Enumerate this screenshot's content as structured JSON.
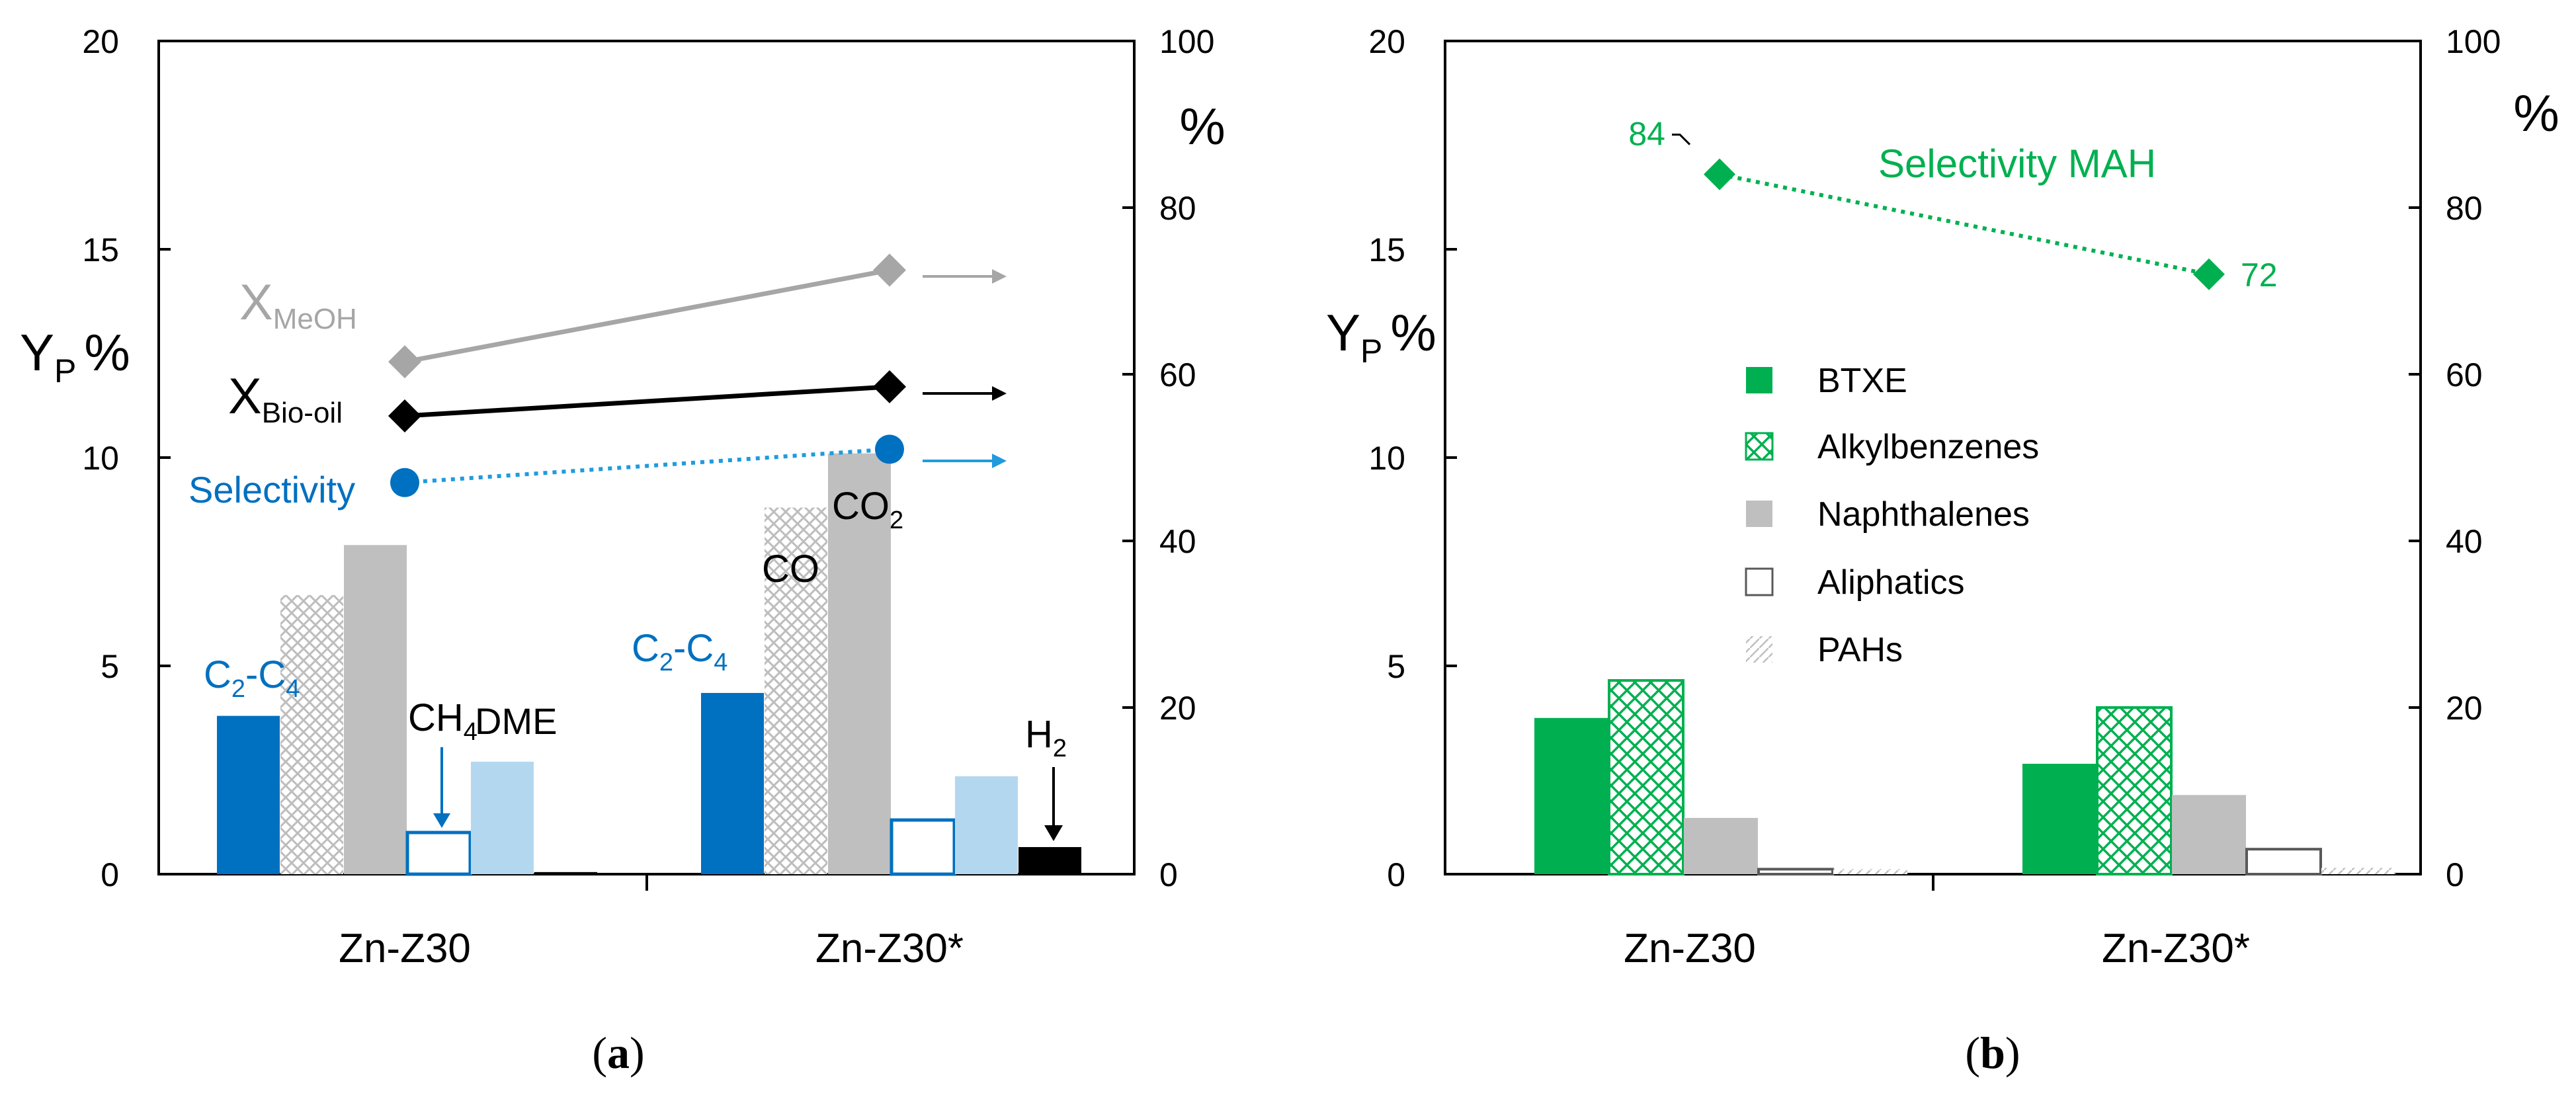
{
  "colors": {
    "blue_dark": "#0070C0",
    "blue_light": "#B4D7F0",
    "gray": "#BFBFBF",
    "gray_text": "#A6A6A6",
    "green": "#00B050",
    "black": "#000000"
  },
  "chart_data": [
    {
      "id": "a",
      "panel_label": "a",
      "type": "bar",
      "categories": [
        "Zn-Z30",
        "Zn-Z30*"
      ],
      "ylabel": "Y",
      "ylabel_sub": "P",
      "ylabel_unit": "%",
      "ylim": [
        0,
        20
      ],
      "yticks": [
        "0",
        "5",
        "10",
        "15",
        "20"
      ],
      "y2label": "%",
      "y2lim": [
        0,
        100
      ],
      "y2ticks": [
        "0",
        "20",
        "40",
        "60",
        "80",
        "100"
      ],
      "series": [
        {
          "name": "C2-C4",
          "label_main": "C",
          "label_sub1": "2",
          "label_mid": "-C",
          "label_sub2": "4",
          "values": [
            3.8,
            4.35
          ]
        },
        {
          "name": "CO",
          "label": "CO",
          "values": [
            6.7,
            8.8
          ]
        },
        {
          "name": "CO2",
          "label_main": "CO",
          "label_sub": "2",
          "values": [
            7.9,
            10.1
          ]
        },
        {
          "name": "CH4",
          "label_main": "CH",
          "label_sub": "4",
          "values": [
            1.0,
            1.3
          ]
        },
        {
          "name": "DME",
          "label": "DME",
          "values": [
            2.7,
            2.35
          ]
        },
        {
          "name": "H2",
          "label_main": "H",
          "label_sub": "2",
          "values": [
            0.05,
            0.65
          ]
        }
      ],
      "lines": [
        {
          "name": "X_MeOH",
          "label_main": "X",
          "label_sub": "MeOH",
          "values": [
            61.5,
            72.5
          ]
        },
        {
          "name": "X_Bio-oil",
          "label_main": "X",
          "label_sub": "Bio-oil",
          "values": [
            55.0,
            58.5
          ]
        },
        {
          "name": "Selectivity",
          "label": "Selectivity",
          "values": [
            47.0,
            51.0
          ]
        }
      ]
    },
    {
      "id": "b",
      "panel_label": "b",
      "type": "bar",
      "categories": [
        "Zn-Z30",
        "Zn-Z30*"
      ],
      "ylabel": "Y",
      "ylabel_sub": "P",
      "ylabel_unit": "%",
      "ylim": [
        0,
        20
      ],
      "yticks": [
        "0",
        "5",
        "10",
        "15",
        "20"
      ],
      "y2label": "%",
      "y2lim": [
        0,
        100
      ],
      "y2ticks": [
        "0",
        "20",
        "40",
        "60",
        "80",
        "100"
      ],
      "legend_position": "center",
      "series": [
        {
          "name": "BTXE",
          "values": [
            3.75,
            2.65
          ]
        },
        {
          "name": "Alkylbenzenes",
          "values": [
            4.65,
            4.0
          ]
        },
        {
          "name": "Naphthalenes",
          "values": [
            1.35,
            1.9
          ]
        },
        {
          "name": "Aliphatics",
          "values": [
            0.12,
            0.6
          ]
        },
        {
          "name": "PAHs",
          "values": [
            0.12,
            0.15
          ]
        }
      ],
      "line": {
        "name": "Selectivity MAH",
        "label": "Selectivity  MAH",
        "values": [
          84,
          72
        ],
        "data_labels": [
          "84",
          "72"
        ]
      }
    }
  ]
}
